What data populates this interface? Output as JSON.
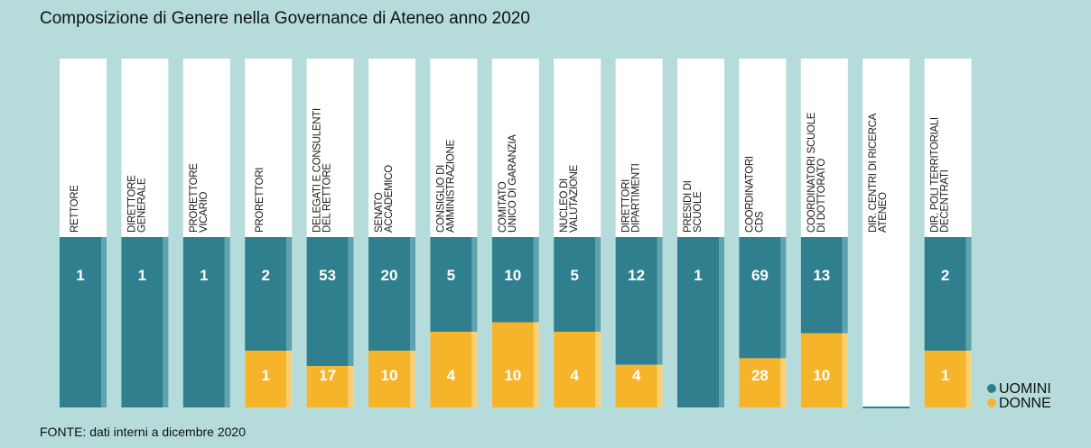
{
  "chart_data": {
    "type": "stacked_percent_bar",
    "title": "Composizione di Genere nella Governance di Ateneo anno 2020",
    "source": "FONTE: dati interni a dicembre 2020",
    "categories": [
      [
        "RETTORE"
      ],
      [
        "DIRETTORE",
        "GENERALE"
      ],
      [
        "PRORETTORE",
        "VICARIO"
      ],
      [
        "PRORETTORI"
      ],
      [
        "DELEGATI E CONSULENTI",
        "DEL RETTORE"
      ],
      [
        "SENATO",
        "ACCADEMICO"
      ],
      [
        "CONSIGLIO DI",
        "AMMINISTRAZIONE"
      ],
      [
        "COMITATO",
        "UNICO DI GARANZIA"
      ],
      [
        "NUCLEO DI",
        "VALUTAZIONE"
      ],
      [
        "DIRETTORI",
        "DIPARTIMENTI"
      ],
      [
        "PRESIDI DI",
        "SCUOLE"
      ],
      [
        "COORDINATORI",
        "CDS"
      ],
      [
        "COORDINATORI SCUOLE",
        "DI DOTTORATO"
      ],
      [
        "DIR. CENTRI DI RICERCA",
        "ATENEO"
      ],
      [
        "DIR. POLI TERRITORIALI",
        "DECENTRATI"
      ]
    ],
    "series": [
      {
        "name": "UOMINI",
        "color": "#2f7f8e",
        "values": [
          1,
          1,
          1,
          2,
          53,
          20,
          5,
          10,
          5,
          12,
          1,
          69,
          13,
          null,
          2
        ]
      },
      {
        "name": "DONNE",
        "color": "#f6b42b",
        "values": [
          null,
          null,
          null,
          1,
          17,
          10,
          4,
          10,
          4,
          4,
          null,
          28,
          10,
          null,
          1
        ]
      }
    ]
  }
}
